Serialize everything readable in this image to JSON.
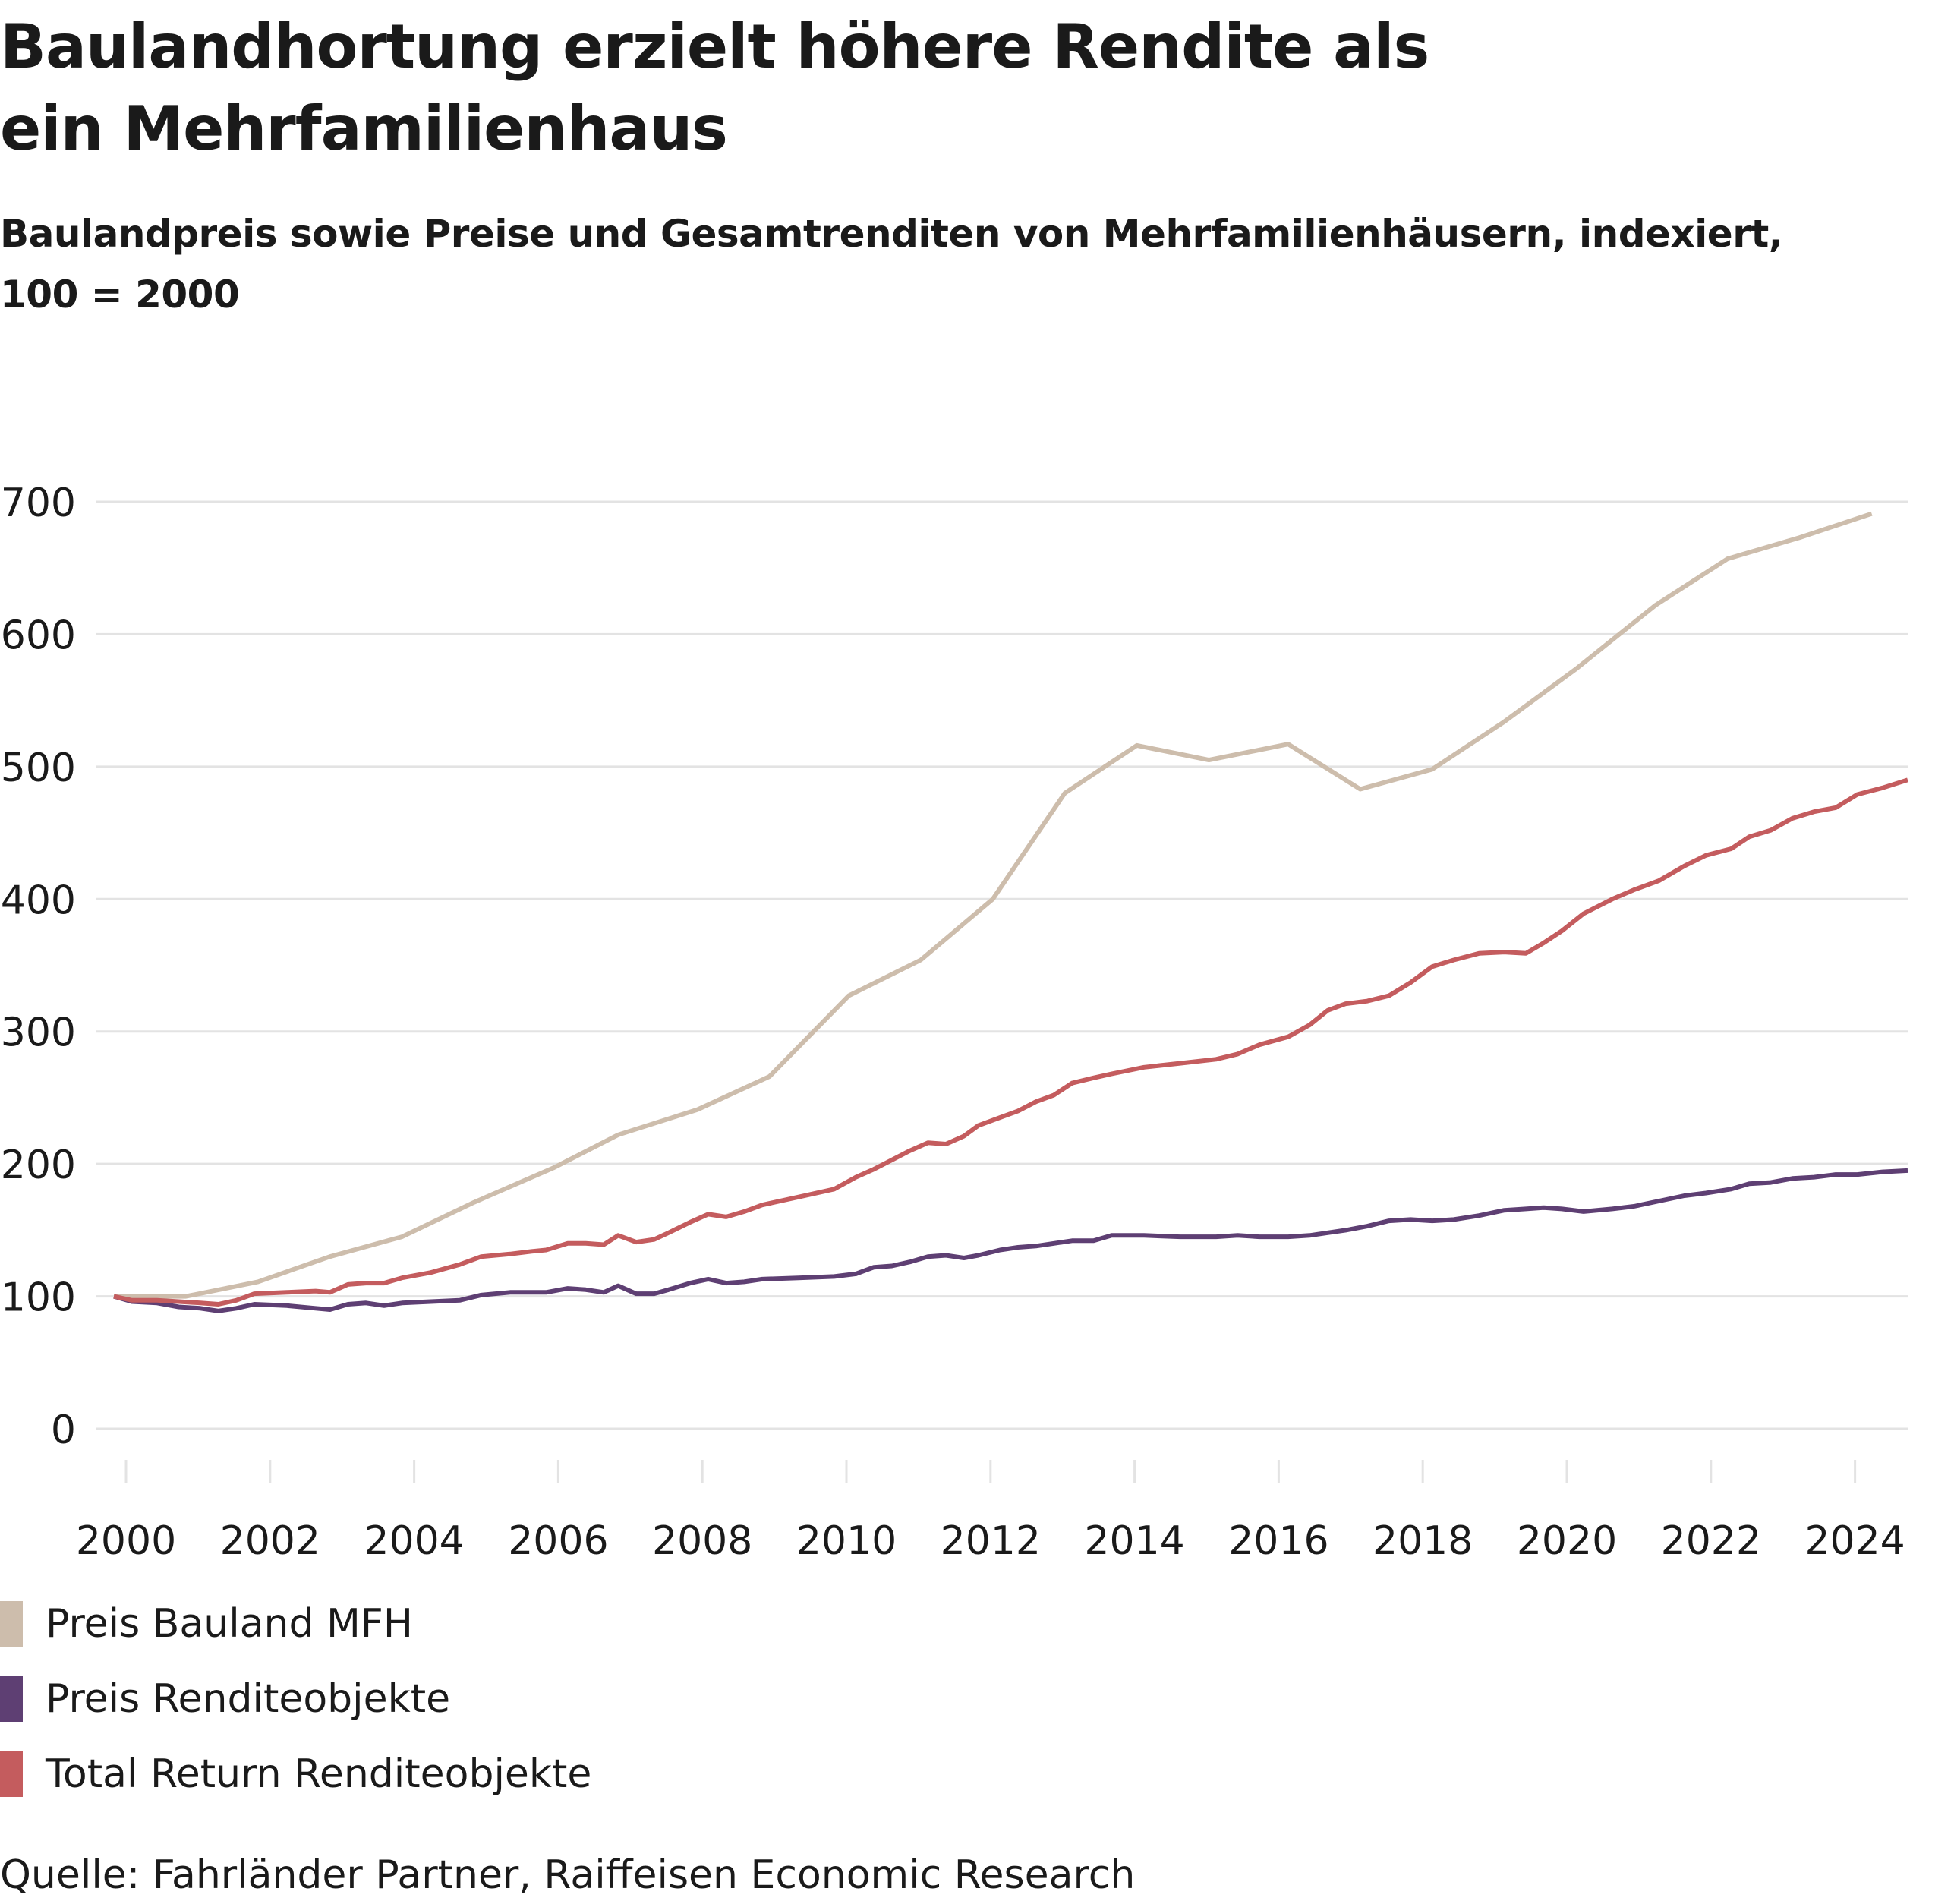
{
  "header": {
    "title": "Baulandhortung erzielt höhere Rendite als ein Mehrfamilienhaus",
    "subtitle": "Baulandpreis sowie Preise und Gesamtrenditen von Mehrfamilienhäusern, indexiert, 100 = 2000"
  },
  "source": "Quelle: Fahrländer Partner, Raiffeisen Economic Research",
  "chart_data": {
    "type": "line",
    "title": "Baulandhortung erzielt höhere Rendite als ein Mehrfamilienhaus",
    "subtitle": "Baulandpreis sowie Preise und Gesamtrenditen von Mehrfamilienhäusern, indexiert, 100 = 2000",
    "xlabel": "",
    "ylabel": "",
    "xlim": [
      2000,
      2024.9
    ],
    "ylim": [
      0,
      700
    ],
    "yticks": [
      0,
      100,
      200,
      300,
      400,
      500,
      600,
      700
    ],
    "xticks": [
      2000,
      2002,
      2004,
      2006,
      2008,
      2010,
      2012,
      2014,
      2016,
      2018,
      2020,
      2022,
      2024
    ],
    "grid": "horizontal",
    "legend": "bottom-left",
    "series": [
      {
        "name": "Preis Bauland MFH",
        "color": "#CDBDAC",
        "x": [
          2000.0,
          2001.0,
          2002.0,
          2003.0,
          2004.0,
          2005.0,
          2006.1,
          2007.0,
          2008.1,
          2009.1,
          2010.2,
          2011.2,
          2012.2,
          2013.2,
          2014.2,
          2015.2,
          2016.3,
          2017.3,
          2018.3,
          2019.3,
          2020.3,
          2021.4,
          2022.4,
          2023.4,
          2024.4
        ],
        "y": [
          100,
          100,
          111,
          130,
          145,
          171,
          197,
          222,
          241,
          266,
          327,
          354,
          400,
          480,
          516,
          505,
          517,
          483,
          498,
          534,
          574,
          622,
          657,
          673,
          691
        ]
      },
      {
        "name": "Preis Renditeobjekte",
        "color": "#5E3F73",
        "x": [
          2000.0,
          2000.25,
          2000.6,
          2000.9,
          2001.2,
          2001.45,
          2001.7,
          2001.95,
          2002.4,
          2002.8,
          2003.0,
          2003.25,
          2003.5,
          2003.75,
          2004.0,
          2004.4,
          2004.8,
          2005.1,
          2005.5,
          2005.8,
          2006.0,
          2006.3,
          2006.55,
          2006.8,
          2007.0,
          2007.25,
          2007.5,
          2007.7,
          2008.0,
          2008.25,
          2008.5,
          2008.75,
          2009.0,
          2009.5,
          2010.0,
          2010.3,
          2010.55,
          2010.8,
          2011.05,
          2011.3,
          2011.55,
          2011.8,
          2012.0,
          2012.3,
          2012.55,
          2012.8,
          2013.05,
          2013.3,
          2013.6,
          2013.85,
          2014.3,
          2014.8,
          2015.3,
          2015.6,
          2015.9,
          2016.3,
          2016.6,
          2016.85,
          2017.1,
          2017.4,
          2017.7,
          2018.0,
          2018.3,
          2018.6,
          2018.95,
          2019.3,
          2019.6,
          2019.85,
          2020.1,
          2020.4,
          2020.8,
          2021.1,
          2021.45,
          2021.8,
          2022.1,
          2022.45,
          2022.7,
          2023.0,
          2023.3,
          2023.6,
          2023.9,
          2024.2,
          2024.55,
          2024.9
        ],
        "y": [
          100,
          96,
          95,
          92,
          91,
          89,
          91,
          94,
          93,
          91,
          90,
          94,
          95,
          93,
          95,
          96,
          97,
          101,
          103,
          103,
          103,
          106,
          105,
          103,
          108,
          102,
          102,
          105,
          110,
          113,
          110,
          111,
          113,
          114,
          115,
          117,
          122,
          123,
          126,
          130,
          131,
          129,
          131,
          135,
          137,
          138,
          140,
          142,
          142,
          146,
          146,
          145,
          145,
          146,
          145,
          145,
          146,
          148,
          150,
          153,
          157,
          158,
          157,
          158,
          161,
          165,
          166,
          167,
          166,
          164,
          166,
          168,
          172,
          176,
          178,
          181,
          185,
          186,
          189,
          190,
          192,
          192,
          194,
          195
        ]
      },
      {
        "name": "Total Return Renditeobjekte",
        "color": "#C45C5E",
        "x": [
          2000.0,
          2000.25,
          2000.6,
          2000.9,
          2001.2,
          2001.45,
          2001.7,
          2001.95,
          2002.4,
          2002.8,
          2003.0,
          2003.25,
          2003.5,
          2003.75,
          2004.0,
          2004.4,
          2004.8,
          2005.1,
          2005.5,
          2005.8,
          2006.0,
          2006.3,
          2006.55,
          2006.8,
          2007.0,
          2007.25,
          2007.5,
          2007.7,
          2008.0,
          2008.25,
          2008.5,
          2008.75,
          2009.0,
          2009.5,
          2010.0,
          2010.3,
          2010.55,
          2010.8,
          2011.05,
          2011.3,
          2011.55,
          2011.8,
          2012.0,
          2012.3,
          2012.55,
          2012.8,
          2013.05,
          2013.3,
          2013.6,
          2013.85,
          2014.3,
          2014.8,
          2015.3,
          2015.6,
          2015.9,
          2016.3,
          2016.6,
          2016.85,
          2017.1,
          2017.4,
          2017.7,
          2018.0,
          2018.3,
          2018.6,
          2018.95,
          2019.3,
          2019.6,
          2019.85,
          2020.1,
          2020.4,
          2020.8,
          2021.1,
          2021.45,
          2021.8,
          2022.1,
          2022.45,
          2022.7,
          2023.0,
          2023.3,
          2023.6,
          2023.9,
          2024.2,
          2024.55,
          2024.9
        ],
        "y": [
          100,
          97,
          97,
          96,
          95,
          94,
          97,
          102,
          103,
          104,
          103,
          109,
          110,
          110,
          114,
          118,
          124,
          130,
          132,
          134,
          135,
          140,
          140,
          139,
          146,
          141,
          143,
          148,
          156,
          162,
          160,
          164,
          169,
          175,
          181,
          190,
          196,
          203,
          210,
          216,
          215,
          221,
          229,
          235,
          240,
          247,
          252,
          261,
          265,
          268,
          273,
          276,
          279,
          283,
          290,
          296,
          305,
          316,
          321,
          323,
          327,
          337,
          349,
          354,
          359,
          360,
          359,
          367,
          376,
          389,
          400,
          407,
          414,
          425,
          433,
          438,
          447,
          452,
          461,
          466,
          469,
          479,
          484,
          490
        ]
      }
    ]
  }
}
